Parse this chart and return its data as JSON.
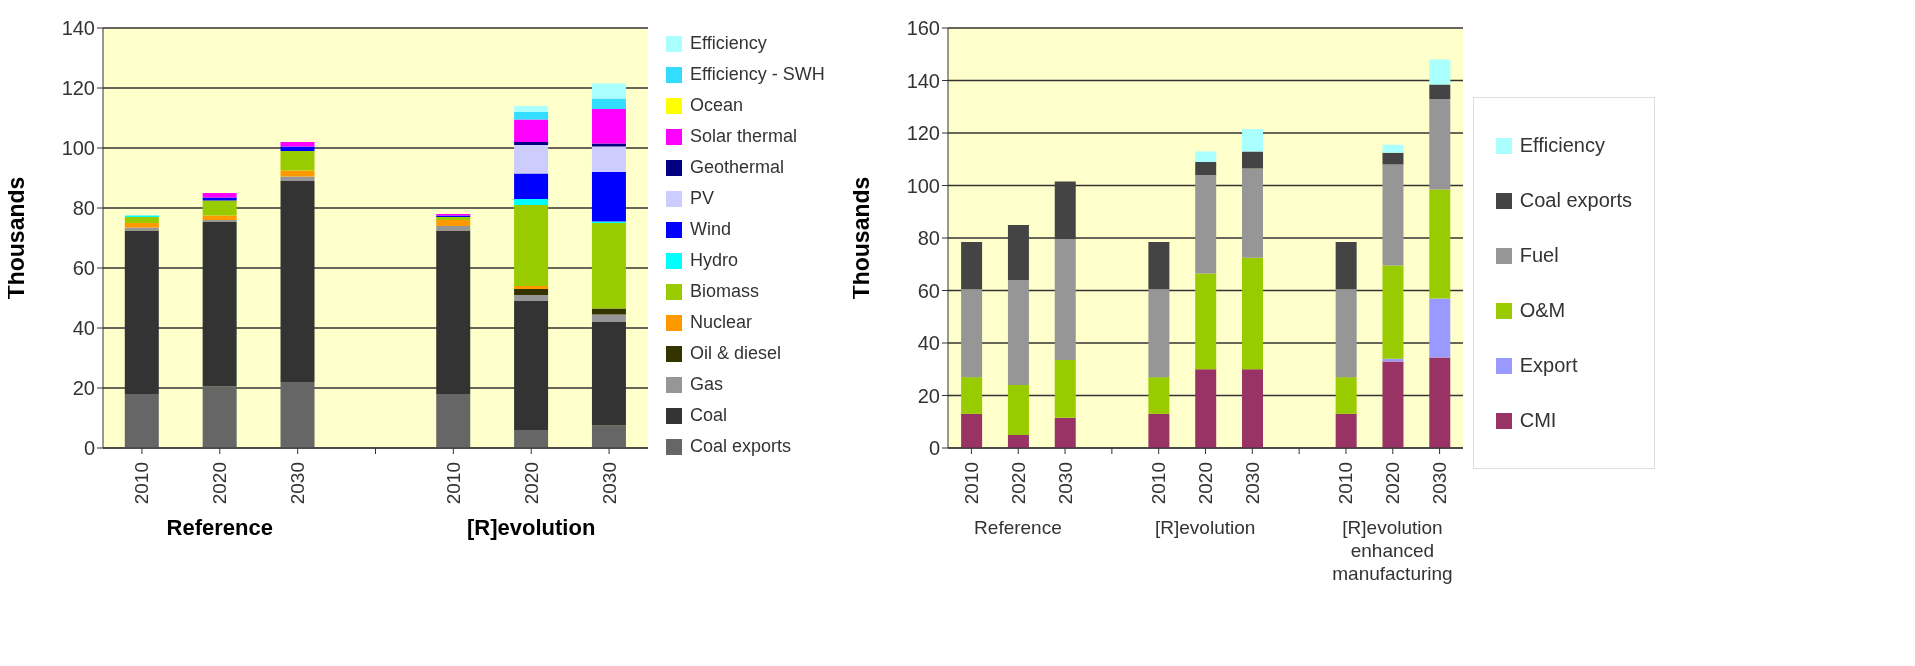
{
  "chart_data": [
    {
      "type": "bar",
      "stacked": true,
      "ylabel": "Thousands",
      "ylim": [
        0,
        140
      ],
      "yticks": [
        0,
        20,
        40,
        60,
        80,
        100,
        120,
        140
      ],
      "grid": "y",
      "legend": "right",
      "categories": [
        "2010",
        "2020",
        "2030",
        null,
        "2010",
        "2020",
        "2030"
      ],
      "annotations": [
        "Reference",
        "[R]evolution"
      ],
      "series": [
        {
          "name": "Coal exports",
          "color": "#666666",
          "values": [
            18,
            20.5,
            22,
            null,
            18,
            6,
            7.5
          ]
        },
        {
          "name": "Coal",
          "color": "#333333",
          "values": [
            54.5,
            55,
            67,
            null,
            54.5,
            43,
            34.5
          ]
        },
        {
          "name": "Gas",
          "color": "#969696",
          "values": [
            1,
            0.5,
            1.5,
            null,
            1.5,
            2,
            2.5
          ]
        },
        {
          "name": "Oil & diesel",
          "color": "#333300",
          "values": [
            0,
            0,
            0,
            null,
            0,
            2,
            2
          ]
        },
        {
          "name": "Nuclear",
          "color": "#ff9900",
          "values": [
            1.5,
            1.5,
            2,
            null,
            2,
            1,
            0
          ]
        },
        {
          "name": "Biomass",
          "color": "#99cc00",
          "values": [
            2,
            5,
            6.5,
            null,
            1,
            27,
            28.5
          ]
        },
        {
          "name": "Hydro",
          "color": "#00ffff",
          "values": [
            0.5,
            0,
            0,
            null,
            0,
            2,
            0.5
          ]
        },
        {
          "name": "Wind",
          "color": "#0000ff",
          "values": [
            0,
            1,
            1.5,
            null,
            0.5,
            8.5,
            16.5
          ]
        },
        {
          "name": "PV",
          "color": "#ccccff",
          "values": [
            0,
            0,
            0,
            null,
            0,
            9.5,
            8.5
          ]
        },
        {
          "name": "Geothermal",
          "color": "#000080",
          "values": [
            0,
            0,
            0,
            null,
            0,
            1,
            1
          ]
        },
        {
          "name": "Solar thermal",
          "color": "#ff00ff",
          "values": [
            0,
            1.5,
            1.5,
            null,
            0.5,
            7.5,
            11.5
          ]
        },
        {
          "name": "Ocean",
          "color": "#ffff00",
          "values": [
            0,
            0,
            0,
            null,
            0,
            0,
            0
          ]
        },
        {
          "name": "Efficiency - SWH",
          "color": "#33ddff",
          "values": [
            0,
            0,
            0,
            null,
            0,
            2.5,
            3.5
          ]
        },
        {
          "name": "Efficiency",
          "color": "#aaffff",
          "values": [
            0,
            0,
            0,
            null,
            0,
            2,
            5
          ]
        }
      ]
    },
    {
      "type": "bar",
      "stacked": true,
      "ylabel": "Thousands",
      "ylim": [
        0,
        160
      ],
      "yticks": [
        0,
        20,
        40,
        60,
        80,
        100,
        120,
        140,
        160
      ],
      "grid": "y",
      "legend": "right",
      "categories": [
        "2010",
        "2020",
        "2030",
        null,
        "2010",
        "2020",
        "2030",
        null,
        "2010",
        "2020",
        "2030"
      ],
      "annotations": [
        "Reference",
        "[R]evolution",
        "[R]evolution enhanced manufacturing"
      ],
      "series": [
        {
          "name": "CMI",
          "color": "#993366",
          "values": [
            13,
            5,
            11.5,
            null,
            13,
            30,
            30,
            null,
            13,
            33,
            34.5
          ]
        },
        {
          "name": "Export",
          "color": "#9999ff",
          "values": [
            0,
            0,
            0,
            null,
            0,
            0,
            0,
            null,
            0,
            1,
            22.5
          ]
        },
        {
          "name": "O&M",
          "color": "#99cc00",
          "values": [
            14,
            19,
            22,
            null,
            14,
            36.5,
            42.5,
            null,
            14,
            35.5,
            41.5
          ]
        },
        {
          "name": "Fuel",
          "color": "#969696",
          "values": [
            33.5,
            40,
            46,
            null,
            33.5,
            37.5,
            34,
            null,
            33.5,
            38.5,
            34.5
          ]
        },
        {
          "name": "Coal exports",
          "color": "#444444",
          "values": [
            18,
            21,
            22,
            null,
            18,
            5,
            6.5,
            null,
            18,
            4.5,
            5.5
          ]
        },
        {
          "name": "Efficiency",
          "color": "#aaffff",
          "values": [
            0,
            0,
            0,
            null,
            0,
            4,
            8.5,
            null,
            0,
            3,
            9.5
          ]
        }
      ]
    }
  ]
}
